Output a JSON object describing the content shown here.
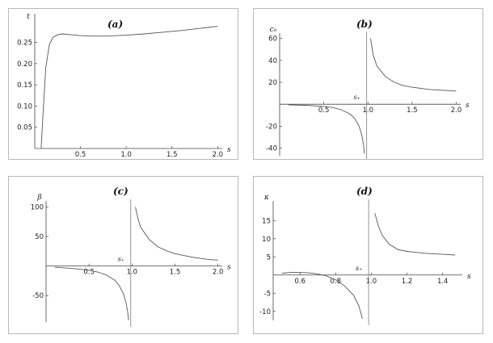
{
  "chart_data": [
    {
      "type": "line",
      "panel_label": "(a)",
      "xlabel": "s",
      "ylabel": "t",
      "xlim": [
        0.0,
        2.05
      ],
      "ylim": [
        0.0,
        0.31
      ],
      "x_ticks": [
        "0.5",
        "1.0",
        "1.5",
        "2.0"
      ],
      "y_ticks": [
        "0.05",
        "0.10",
        "0.15",
        "0.20",
        "0.25"
      ],
      "grid": false,
      "series": [
        {
          "points": [
            [
              0.07,
              0.0
            ],
            [
              0.09,
              0.08
            ],
            [
              0.12,
              0.19
            ],
            [
              0.16,
              0.245
            ],
            [
              0.2,
              0.262
            ],
            [
              0.25,
              0.268
            ],
            [
              0.3,
              0.27
            ],
            [
              0.4,
              0.268
            ],
            [
              0.5,
              0.266
            ],
            [
              0.6,
              0.265
            ],
            [
              0.7,
              0.265
            ],
            [
              0.8,
              0.265
            ],
            [
              0.9,
              0.266
            ],
            [
              1.0,
              0.267
            ],
            [
              1.2,
              0.27
            ],
            [
              1.4,
              0.274
            ],
            [
              1.6,
              0.278
            ],
            [
              1.8,
              0.283
            ],
            [
              2.0,
              0.288
            ]
          ]
        }
      ]
    },
    {
      "type": "line",
      "panel_label": "(b)",
      "xlabel": "s",
      "ylabel": "c₀",
      "annotation": "s₊",
      "asymptote_x": 0.985,
      "xlim": [
        0.0,
        2.05
      ],
      "ylim": [
        -47,
        62
      ],
      "x_ticks": [
        "0.5",
        "1.0",
        "1.5",
        "2.0"
      ],
      "y_ticks": [
        "-40",
        "-20",
        "20",
        "40",
        "60"
      ],
      "grid": false,
      "series": [
        {
          "points": [
            [
              0.1,
              -0.5
            ],
            [
              0.3,
              -1.0
            ],
            [
              0.5,
              -2.0
            ],
            [
              0.6,
              -3.0
            ],
            [
              0.7,
              -5.0
            ],
            [
              0.8,
              -9.0
            ],
            [
              0.85,
              -13.0
            ],
            [
              0.9,
              -20.0
            ],
            [
              0.93,
              -28.0
            ],
            [
              0.95,
              -37.0
            ],
            [
              0.96,
              -45.0
            ]
          ]
        },
        {
          "points": [
            [
              1.03,
              60.0
            ],
            [
              1.06,
              45.0
            ],
            [
              1.1,
              35.0
            ],
            [
              1.2,
              25.0
            ],
            [
              1.3,
              20.0
            ],
            [
              1.4,
              17.0
            ],
            [
              1.5,
              15.5
            ],
            [
              1.7,
              13.5
            ],
            [
              1.9,
              12.5
            ],
            [
              2.0,
              12.0
            ]
          ]
        }
      ]
    },
    {
      "type": "line",
      "panel_label": "(c)",
      "xlabel": "s",
      "ylabel": "β",
      "annotation": "s₊",
      "asymptote_x": 0.985,
      "xlim": [
        0.0,
        2.05
      ],
      "ylim": [
        -95,
        105
      ],
      "x_ticks": [
        "0.5",
        "1.0",
        "1.5",
        "2.0"
      ],
      "y_ticks": [
        "-50",
        "50",
        "100"
      ],
      "grid": false,
      "series": [
        {
          "points": [
            [
              0.1,
              -2.0
            ],
            [
              0.3,
              -4.0
            ],
            [
              0.5,
              -7.0
            ],
            [
              0.6,
              -10.0
            ],
            [
              0.7,
              -15.0
            ],
            [
              0.8,
              -24.0
            ],
            [
              0.85,
              -33.0
            ],
            [
              0.9,
              -47.0
            ],
            [
              0.93,
              -62.0
            ],
            [
              0.95,
              -78.0
            ],
            [
              0.96,
              -92.0
            ]
          ]
        },
        {
          "points": [
            [
              1.04,
              100.0
            ],
            [
              1.07,
              80.0
            ],
            [
              1.1,
              66.0
            ],
            [
              1.2,
              45.0
            ],
            [
              1.3,
              33.0
            ],
            [
              1.4,
              26.0
            ],
            [
              1.5,
              21.0
            ],
            [
              1.7,
              15.0
            ],
            [
              1.9,
              11.0
            ],
            [
              2.0,
              10.0
            ]
          ]
        }
      ]
    },
    {
      "type": "line",
      "panel_label": "(d)",
      "xlabel": "s",
      "ylabel": "κ",
      "annotation": "s₊",
      "asymptote_x": 0.985,
      "xlim": [
        0.45,
        1.51
      ],
      "ylim": [
        -12.5,
        19.5
      ],
      "x_ticks": [
        "0.6",
        "0.8",
        "1.0",
        "1.2",
        "1.4"
      ],
      "y_ticks": [
        "-10",
        "-5",
        "5",
        "10",
        "15"
      ],
      "grid": false,
      "series": [
        {
          "points": [
            [
              0.5,
              0.5
            ],
            [
              0.55,
              0.7
            ],
            [
              0.6,
              0.7
            ],
            [
              0.65,
              0.6
            ],
            [
              0.7,
              0.3
            ],
            [
              0.75,
              -0.3
            ],
            [
              0.8,
              -1.3
            ],
            [
              0.85,
              -3.0
            ],
            [
              0.9,
              -5.5
            ],
            [
              0.93,
              -8.5
            ],
            [
              0.95,
              -12.0
            ]
          ]
        },
        {
          "points": [
            [
              1.02,
              17.0
            ],
            [
              1.04,
              13.5
            ],
            [
              1.06,
              11.0
            ],
            [
              1.1,
              8.5
            ],
            [
              1.15,
              7.0
            ],
            [
              1.2,
              6.5
            ],
            [
              1.3,
              6.0
            ],
            [
              1.4,
              5.7
            ],
            [
              1.47,
              5.5
            ]
          ]
        }
      ]
    }
  ]
}
